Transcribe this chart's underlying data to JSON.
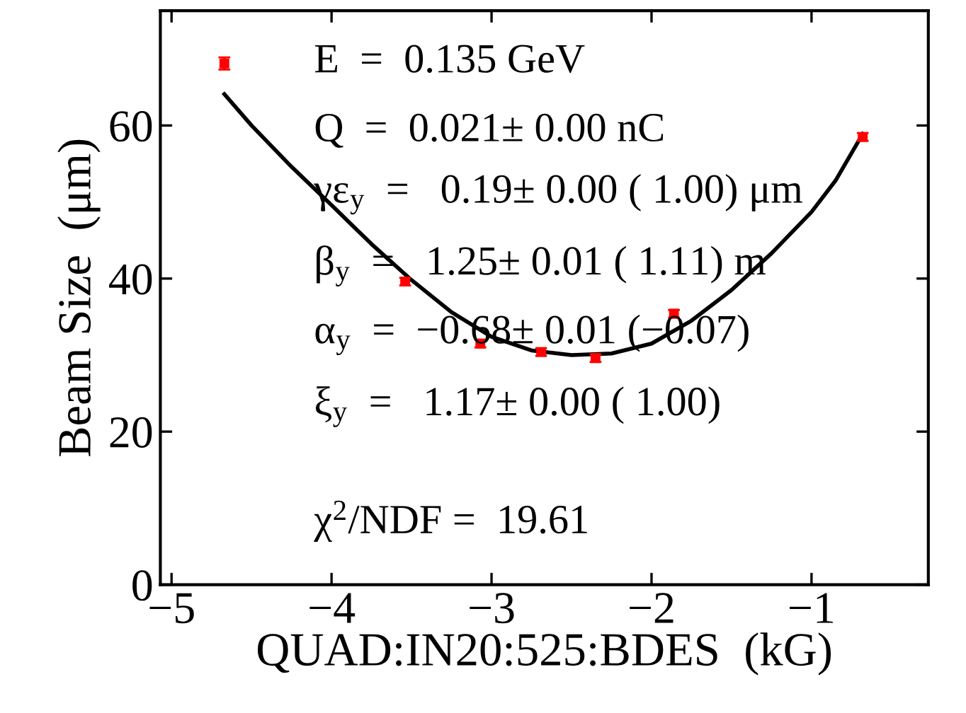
{
  "chart_data": {
    "type": "scatter",
    "xlabel": "QUAD:IN20:525:BDES  (kG)",
    "ylabel": "Beam Size  (μm)",
    "xlim": [
      -5.07,
      -0.27
    ],
    "ylim": [
      0,
      75
    ],
    "xticks": [
      {
        "value": -5,
        "label": "−5"
      },
      {
        "value": -4,
        "label": "−4"
      },
      {
        "value": -3,
        "label": "−3"
      },
      {
        "value": -2,
        "label": "−2"
      },
      {
        "value": -1,
        "label": "−1"
      }
    ],
    "yticks": [
      0,
      20,
      40,
      60
    ],
    "grid": false,
    "marker": "square",
    "series": [
      {
        "color": "#ff0000",
        "x": [
          -4.67,
          -3.54,
          -3.07,
          -2.69,
          -2.35,
          -1.86,
          -0.68
        ],
        "values": [
          68.1,
          39.6,
          31.5,
          30.4,
          29.6,
          35.4,
          58.5
        ],
        "errors": [
          0.8,
          0.5,
          0.5,
          0.5,
          0.5,
          0.5,
          0.5
        ]
      },
      {
        "type": "line",
        "color": "#000000",
        "line_style": "solid",
        "marker": "none",
        "x": [
          -4.67,
          -4.5,
          -4.25,
          -4.0,
          -3.75,
          -3.5,
          -3.25,
          -3.0,
          -2.75,
          -2.5,
          -2.25,
          -2.0,
          -1.75,
          -1.5,
          -1.25,
          -1.0,
          -0.85,
          -0.68
        ],
        "values": [
          64.1,
          60.0,
          54.6,
          49.6,
          44.5,
          39.8,
          35.6,
          32.4,
          30.6,
          30.0,
          30.2,
          31.5,
          34.5,
          38.5,
          43.3,
          48.7,
          52.8,
          58.9
        ]
      }
    ],
    "annotations": [
      "E  =  0.135 GeV",
      "Q  =  0.021± 0.00 nC",
      "γε$_{y}$  =   0.19± 0.00 ( 1.00) μm",
      "β$_{y}$  =   1.25± 0.01 ( 1.11) m",
      "α$_{y}$  =  −0.68± 0.01 (−0.07)",
      "ξ$_{y}$  =   1.17± 0.00 ( 1.00)",
      "χ$^{2}$/NDF =  19.61"
    ]
  }
}
